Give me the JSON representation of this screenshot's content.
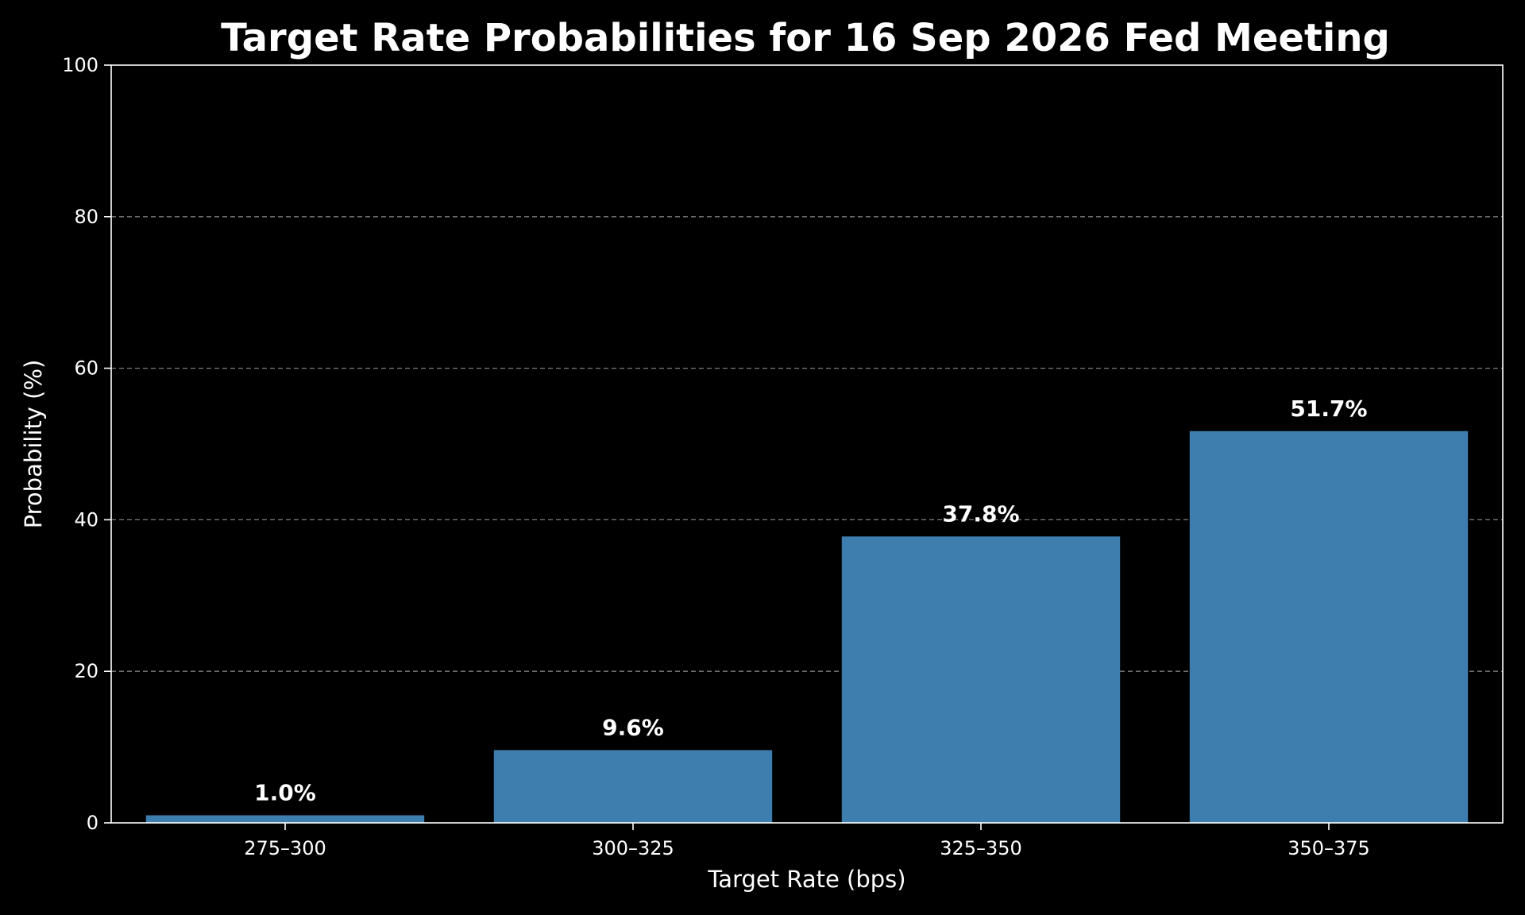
{
  "chart_data": {
    "type": "bar",
    "title": "Target Rate Probabilities for 16 Sep 2026 Fed Meeting",
    "xlabel": "Target Rate (bps)",
    "ylabel": "Probability (%)",
    "categories": [
      "275–300",
      "300–325",
      "325–350",
      "350–375"
    ],
    "values": [
      1.0,
      9.6,
      37.8,
      51.7
    ],
    "value_labels": [
      "1.0%",
      "9.6%",
      "37.8%",
      "51.7%"
    ],
    "ylim": [
      0,
      100
    ],
    "yticks": [
      0,
      20,
      40,
      60,
      80,
      100
    ],
    "grid": "horizontal dashed",
    "legend": "none",
    "colors": {
      "background": "#000000",
      "bar": "#3d7eae",
      "text": "#ffffff",
      "axis": "#ffffff",
      "grid": "#7f7f7f"
    }
  }
}
